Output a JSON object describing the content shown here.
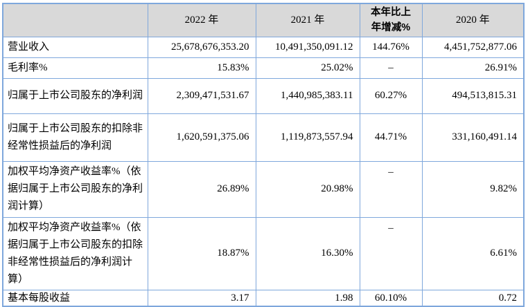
{
  "page": {
    "background": "#ffffff"
  },
  "table": {
    "header_bg": "#d9d9d9",
    "border_color": "#7ea7dc",
    "headers": {
      "label": "",
      "y2022": "2022 年",
      "y2021": "2021 年",
      "change": "本年比上年增减%",
      "y2020": "2020 年"
    },
    "rows": [
      {
        "label": "营业收入",
        "v2022": "25,678,676,353.20",
        "v2021": "10,491,350,091.12",
        "change": "144.76%",
        "v2020": "4,451,752,877.06"
      },
      {
        "label": "毛利率%",
        "v2022": "15.83%",
        "v2021": "25.02%",
        "change": "–",
        "v2020": "26.91%"
      },
      {
        "label": "归属于上市公司股东的净利润",
        "v2022": "2,309,471,531.67",
        "v2021": "1,440,985,383.11",
        "change": "60.27%",
        "v2020": "494,513,815.31"
      },
      {
        "label": "归属于上市公司股东的扣除非经常性损益后的净利润",
        "v2022": "1,620,591,375.06",
        "v2021": "1,119,873,557.94",
        "change": "44.71%",
        "v2020": "331,160,491.14"
      },
      {
        "label": "加权平均净资产收益率%（依据归属于上市公司股东的净利润计算）",
        "v2022": "26.89%",
        "v2021": "20.98%",
        "change": "–",
        "v2020": "9.82%"
      },
      {
        "label": "加权平均净资产收益率%（依据归属于上市公司股东的扣除非经常性损益后的净利润计算）",
        "v2022": "18.87%",
        "v2021": "16.30%",
        "change": "–",
        "v2020": "6.61%"
      },
      {
        "label": "基本每股收益",
        "v2022": "3.17",
        "v2021": "1.98",
        "change": "60.10%",
        "v2020": "0.72"
      }
    ]
  }
}
